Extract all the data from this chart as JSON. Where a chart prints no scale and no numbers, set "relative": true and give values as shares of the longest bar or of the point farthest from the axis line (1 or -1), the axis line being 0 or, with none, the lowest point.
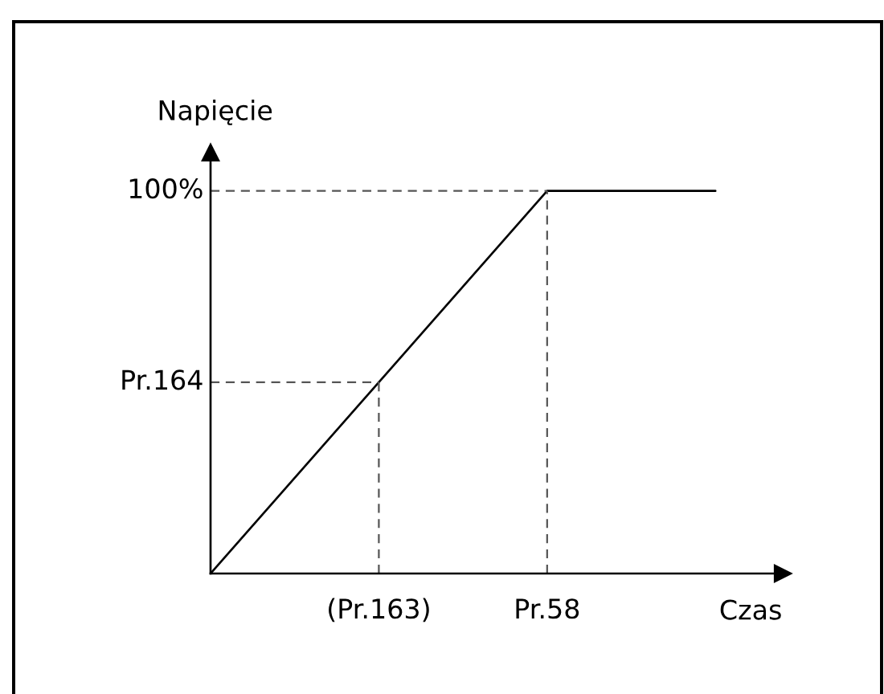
{
  "chart_data": {
    "type": "line",
    "xlabel": "Czas",
    "ylabel": "Napięcie",
    "relative": true,
    "categories": [
      null,
      "(Pr.163)",
      "Pr.58",
      null
    ],
    "series": [
      {
        "color": "#000000",
        "values": [
          0,
          0.5,
          1,
          1
        ]
      }
    ],
    "ref_lines": [
      {
        "axis": "y",
        "value": 1,
        "label": "100%",
        "color": "#555555",
        "line_style": "dashed"
      },
      {
        "axis": "y",
        "value": 0.5,
        "label": "Pr.164",
        "color": "#555555",
        "line_style": "dashed"
      },
      {
        "axis": "x",
        "value": "(Pr.163)",
        "color": "#555555",
        "line_style": "dashed"
      },
      {
        "axis": "x",
        "value": "Pr.58",
        "color": "#555555",
        "line_style": "dashed"
      }
    ],
    "grid": false,
    "marker": "none",
    "line_style": "solid"
  }
}
